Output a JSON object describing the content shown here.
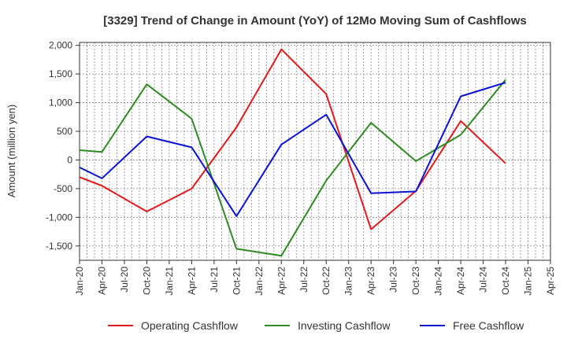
{
  "chart_data": {
    "type": "line",
    "title": "[3329]  Trend of Change in Amount (YoY) of 12Mo Moving Sum of Cashflows",
    "xlabel": "",
    "ylabel": "Amount (million yen)",
    "categories": [
      "Jan-20",
      "Apr-20",
      "Jul-20",
      "Oct-20",
      "Jan-21",
      "Apr-21",
      "Jul-21",
      "Oct-21",
      "Jan-22",
      "Apr-22",
      "Jul-22",
      "Oct-22",
      "Jan-23",
      "Apr-23",
      "Jul-23",
      "Oct-23",
      "Jan-24",
      "Apr-24",
      "Jul-24",
      "Oct-24",
      "Jan-25",
      "Apr-25"
    ],
    "ylim": [
      -1750,
      2050
    ],
    "yticks": [
      -1500,
      -1000,
      -500,
      0,
      500,
      1000,
      1500,
      2000
    ],
    "ytick_labels": [
      "-1,500",
      "-1,000",
      "-500",
      "0",
      "500",
      "1,000",
      "1,500",
      "2,000"
    ],
    "grid": true,
    "series": [
      {
        "name": "Operating Cashflow",
        "color": "#e31a1c",
        "values": [
          -300,
          -450,
          null,
          -900,
          null,
          -500,
          null,
          570,
          null,
          1930,
          null,
          1150,
          null,
          -1210,
          null,
          -540,
          null,
          680,
          null,
          -60,
          null,
          null
        ]
      },
      {
        "name": "Investing Cashflow",
        "color": "#2e8b22",
        "values": [
          170,
          140,
          null,
          1320,
          null,
          720,
          null,
          -1550,
          null,
          -1670,
          null,
          -360,
          null,
          650,
          null,
          -20,
          null,
          440,
          null,
          1400,
          null,
          null
        ]
      },
      {
        "name": "Free Cashflow",
        "color": "#0a12d6",
        "values": [
          -130,
          -320,
          null,
          410,
          null,
          220,
          null,
          -980,
          null,
          270,
          null,
          790,
          null,
          -580,
          null,
          -550,
          null,
          1110,
          null,
          1350,
          null,
          null
        ]
      }
    ],
    "legend_position": "bottom"
  }
}
